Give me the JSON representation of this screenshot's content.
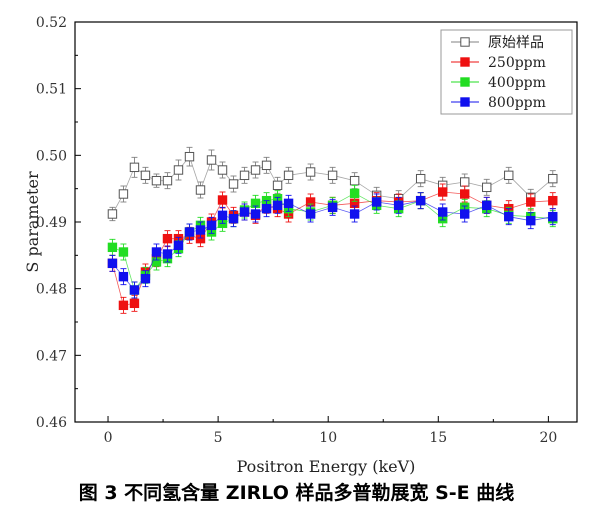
{
  "caption": "图 3  不同氢含量 ZIRLO 样品多普勒展宽 S-E 曲线",
  "chart_data": {
    "type": "scatter",
    "xlabel": "Positron Energy (keV)",
    "ylabel": "S parameter",
    "xlim": [
      -1.5,
      21.3
    ],
    "ylim": [
      0.46,
      0.52
    ],
    "xticks": [
      0,
      5,
      10,
      15,
      20
    ],
    "yticks": [
      0.46,
      0.47,
      0.48,
      0.49,
      0.5,
      0.51,
      0.52
    ],
    "xtick_labels": [
      "0",
      "5",
      "10",
      "15",
      "20"
    ],
    "ytick_labels": [
      "0.46",
      "0.47",
      "0.48",
      "0.49",
      "0.50",
      "0.51",
      "0.52"
    ],
    "grid": false,
    "legend_position": "top-right",
    "series": [
      {
        "name": "原始样品",
        "color": "#808080",
        "marker": "open-square",
        "x": [
          0.2,
          0.7,
          1.2,
          1.7,
          2.2,
          2.7,
          3.2,
          3.7,
          4.2,
          4.7,
          5.2,
          5.7,
          6.2,
          6.7,
          7.2,
          7.7,
          8.2,
          9.2,
          10.2,
          11.2,
          12.2,
          13.2,
          14.2,
          15.2,
          16.2,
          17.2,
          18.2,
          19.2,
          20.2
        ],
        "y": [
          0.4912,
          0.4942,
          0.4982,
          0.497,
          0.4962,
          0.4962,
          0.4978,
          0.4998,
          0.4948,
          0.4993,
          0.4978,
          0.4957,
          0.497,
          0.4978,
          0.4985,
          0.4955,
          0.497,
          0.4975,
          0.497,
          0.4962,
          0.494,
          0.4935,
          0.4965,
          0.4955,
          0.496,
          0.4952,
          0.497,
          0.4937,
          0.4965
        ],
        "err": [
          0.001,
          0.0012,
          0.0015,
          0.0012,
          0.001,
          0.0012,
          0.0015,
          0.0014,
          0.0012,
          0.0015,
          0.0012,
          0.0012,
          0.0012,
          0.0012,
          0.0012,
          0.0012,
          0.0012,
          0.0012,
          0.0012,
          0.0012,
          0.0012,
          0.0012,
          0.0012,
          0.0012,
          0.0012,
          0.0012,
          0.0012,
          0.0012,
          0.0012
        ]
      },
      {
        "name": "250ppm",
        "color": "#ee1111",
        "marker": "filled-square",
        "x": [
          0.2,
          0.7,
          1.2,
          1.7,
          2.2,
          2.7,
          3.2,
          3.7,
          4.2,
          4.7,
          5.2,
          5.7,
          6.2,
          6.7,
          7.2,
          7.7,
          8.2,
          9.2,
          10.2,
          11.2,
          12.2,
          13.2,
          14.2,
          15.2,
          16.2,
          17.2,
          18.2,
          19.2,
          20.2
        ],
        "y": [
          0.4838,
          0.4775,
          0.4778,
          0.4825,
          0.4845,
          0.4875,
          0.4875,
          0.488,
          0.4875,
          0.49,
          0.4933,
          0.491,
          0.4915,
          0.491,
          0.4925,
          0.492,
          0.4912,
          0.493,
          0.4925,
          0.4928,
          0.4932,
          0.493,
          0.4932,
          0.4945,
          0.4942,
          0.4925,
          0.492,
          0.493,
          0.4932
        ],
        "err": [
          0.0012,
          0.0012,
          0.0012,
          0.0012,
          0.0012,
          0.0012,
          0.0012,
          0.0012,
          0.0012,
          0.0012,
          0.0012,
          0.0012,
          0.0012,
          0.0012,
          0.0012,
          0.0012,
          0.0012,
          0.0012,
          0.0012,
          0.0012,
          0.0012,
          0.0012,
          0.0012,
          0.0012,
          0.0012,
          0.0012,
          0.0012,
          0.0012,
          0.0012
        ]
      },
      {
        "name": "400ppm",
        "color": "#22dd22",
        "marker": "filled-square",
        "x": [
          0.2,
          0.7,
          1.2,
          1.7,
          2.2,
          2.7,
          3.2,
          3.7,
          4.2,
          4.7,
          5.2,
          5.7,
          6.2,
          6.7,
          7.2,
          7.7,
          8.2,
          9.2,
          10.2,
          11.2,
          12.2,
          13.2,
          14.2,
          15.2,
          16.2,
          17.2,
          18.2,
          19.2,
          20.2
        ],
        "y": [
          0.4862,
          0.4855,
          0.4798,
          0.482,
          0.484,
          0.4845,
          0.486,
          0.4885,
          0.4895,
          0.4885,
          0.4898,
          0.4905,
          0.4918,
          0.4928,
          0.4932,
          0.4935,
          0.492,
          0.4915,
          0.4925,
          0.4943,
          0.4925,
          0.492,
          0.4932,
          0.4905,
          0.4922,
          0.492,
          0.491,
          0.4908,
          0.4905
        ],
        "err": [
          0.0012,
          0.0012,
          0.0012,
          0.0012,
          0.0012,
          0.0012,
          0.0012,
          0.0012,
          0.0012,
          0.0012,
          0.0012,
          0.0012,
          0.0012,
          0.0012,
          0.0012,
          0.0012,
          0.0012,
          0.0012,
          0.0012,
          0.0012,
          0.0012,
          0.0012,
          0.0012,
          0.0012,
          0.0012,
          0.0012,
          0.0012,
          0.0012,
          0.0012
        ]
      },
      {
        "name": "800ppm",
        "color": "#1111ee",
        "marker": "filled-square",
        "x": [
          0.2,
          0.7,
          1.2,
          1.7,
          2.2,
          2.7,
          3.2,
          3.7,
          4.2,
          4.7,
          5.2,
          5.7,
          6.2,
          6.7,
          7.2,
          7.7,
          8.2,
          9.2,
          10.2,
          11.2,
          12.2,
          13.2,
          14.2,
          15.2,
          16.2,
          17.2,
          18.2,
          19.2,
          20.2
        ],
        "y": [
          0.4838,
          0.4818,
          0.4798,
          0.4815,
          0.4855,
          0.4852,
          0.4865,
          0.4885,
          0.4888,
          0.4895,
          0.491,
          0.4905,
          0.4915,
          0.4912,
          0.492,
          0.4925,
          0.4928,
          0.4912,
          0.4922,
          0.4912,
          0.493,
          0.4925,
          0.4932,
          0.4915,
          0.4912,
          0.4925,
          0.4908,
          0.4902,
          0.4908
        ],
        "err": [
          0.0012,
          0.0012,
          0.0012,
          0.0012,
          0.0012,
          0.0012,
          0.0012,
          0.0012,
          0.0012,
          0.0012,
          0.0012,
          0.0012,
          0.0012,
          0.0012,
          0.0012,
          0.0012,
          0.0012,
          0.0012,
          0.0012,
          0.0012,
          0.0012,
          0.0012,
          0.0012,
          0.0012,
          0.0012,
          0.0012,
          0.0012,
          0.0012,
          0.0012
        ]
      }
    ]
  }
}
